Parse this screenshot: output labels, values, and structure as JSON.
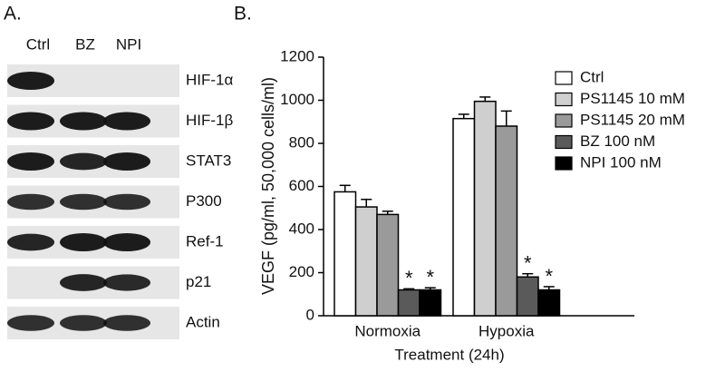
{
  "panel_a": {
    "label": "A.",
    "lanes": [
      "Ctrl",
      "BZ",
      "NPI"
    ],
    "proteins": [
      "HIF-1α",
      "HIF-1β",
      "STAT3",
      "P300",
      "Ref-1",
      "p21",
      "Actin"
    ]
  },
  "chart_data": {
    "type": "bar",
    "panel_label": "B.",
    "ylabel": "VEGF (pg/ml, 50,000 cells/ml)",
    "xlabel": "Treatment (24h)",
    "categories": [
      "Normoxia",
      "Hypoxia"
    ],
    "ylim": [
      0,
      1200
    ],
    "yticks": [
      0,
      200,
      400,
      600,
      800,
      1000,
      1200
    ],
    "legend": "upper right",
    "series": [
      {
        "name": "Ctrl",
        "color": "#ffffff",
        "values": [
          575,
          915
        ],
        "errors": [
          30,
          20
        ]
      },
      {
        "name": "PS1145 10 mM",
        "color": "#cfcfcf",
        "values": [
          505,
          995
        ],
        "errors": [
          35,
          20
        ]
      },
      {
        "name": "PS1145 20 mM",
        "color": "#9a9a9a",
        "values": [
          470,
          880
        ],
        "errors": [
          15,
          70
        ]
      },
      {
        "name": "BZ 100 nM",
        "color": "#5a5a5a",
        "values": [
          120,
          180
        ],
        "errors": [
          5,
          15
        ],
        "significance": [
          "*",
          "*"
        ]
      },
      {
        "name": "NPI 100 nM",
        "color": "#000000",
        "values": [
          120,
          120
        ],
        "errors": [
          10,
          15
        ],
        "significance": [
          "*",
          "*"
        ]
      }
    ]
  }
}
